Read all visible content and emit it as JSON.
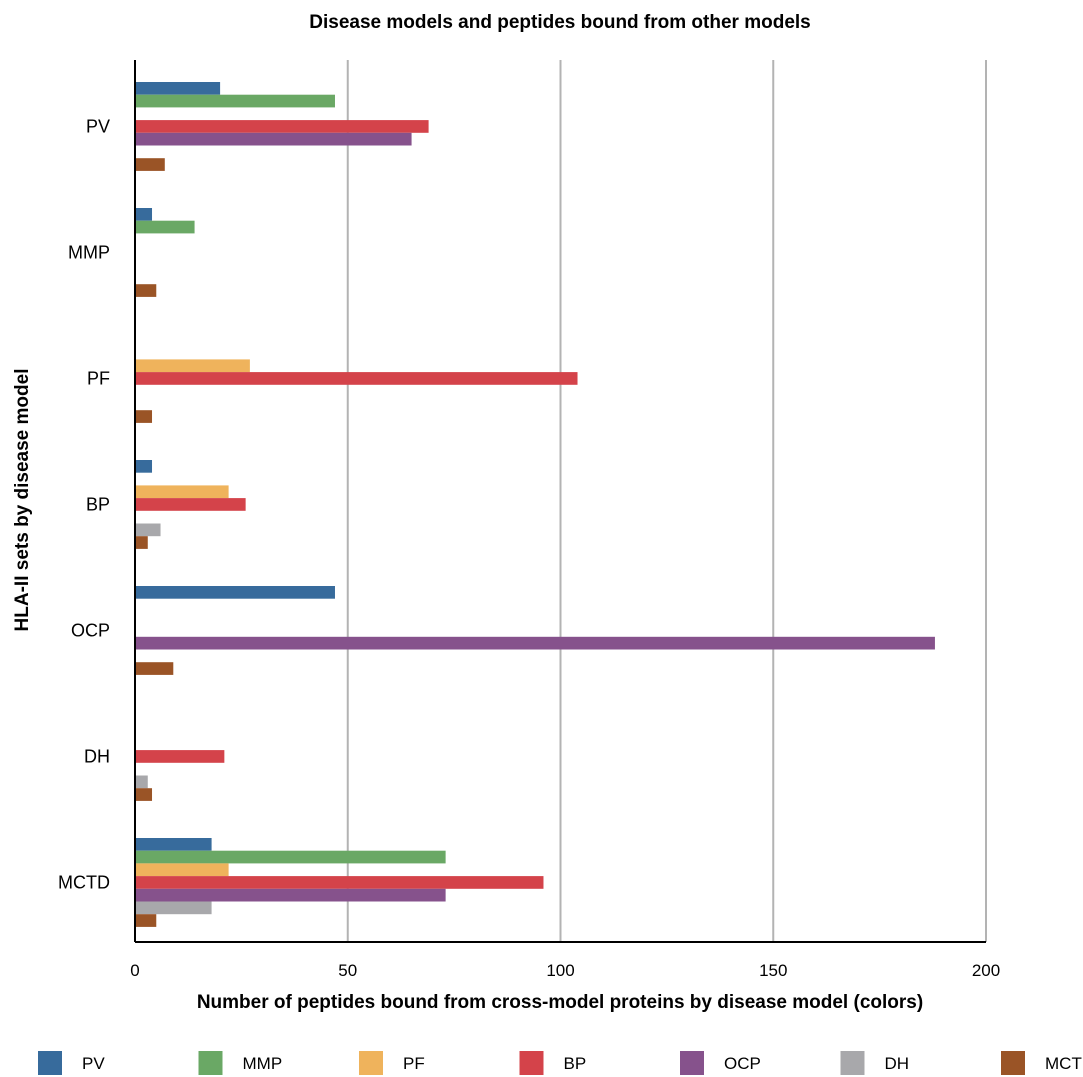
{
  "chart_data": {
    "type": "bar",
    "orientation": "horizontal",
    "title": "Disease models and peptides bound from other models",
    "xlabel": "Number of peptides bound from cross-model proteins by disease model (colors)",
    "ylabel": "HLA-II sets by disease model",
    "xlim": [
      0,
      200
    ],
    "xticks": [
      0,
      50,
      100,
      150,
      200
    ],
    "grid": "vertical",
    "legend_position": "bottom",
    "categories": [
      "PV",
      "MMP",
      "PF",
      "BP",
      "OCP",
      "DH",
      "MCTD"
    ],
    "series": [
      {
        "name": "PV",
        "color": "#376b9c",
        "values": [
          20,
          4,
          0,
          4,
          47,
          0,
          18
        ]
      },
      {
        "name": "MMP",
        "color": "#6aa865",
        "values": [
          47,
          14,
          0,
          0,
          0,
          0,
          73
        ]
      },
      {
        "name": "PF",
        "color": "#efb35c",
        "values": [
          0,
          0,
          27,
          22,
          0,
          0,
          22
        ]
      },
      {
        "name": "BP",
        "color": "#d4434a",
        "values": [
          69,
          0,
          104,
          26,
          0,
          21,
          96
        ]
      },
      {
        "name": "OCP",
        "color": "#86528c",
        "values": [
          65,
          0,
          0,
          0,
          188,
          0,
          73
        ]
      },
      {
        "name": "DH",
        "color": "#a8a8ab",
        "values": [
          0,
          0,
          0,
          6,
          0,
          3,
          18
        ]
      },
      {
        "name": "MCTD",
        "color": "#9a5426",
        "values": [
          7,
          5,
          4,
          3,
          9,
          4,
          5
        ]
      }
    ]
  }
}
